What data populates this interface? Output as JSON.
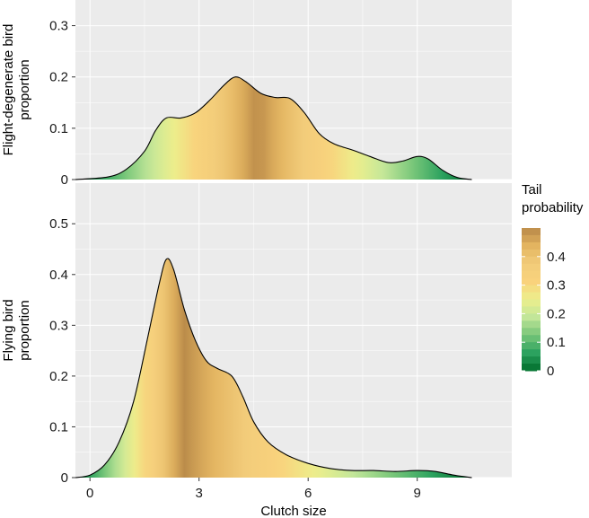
{
  "chart_data": [
    {
      "type": "area",
      "panel": "top",
      "ylabel": "Flight-degenerate bird proportion",
      "ylabel_lines": [
        "Flight-degenerate bird",
        "proportion"
      ],
      "xlabel": "Clutch size",
      "ylim": [
        0,
        0.35
      ],
      "yticks": [
        0,
        0.1,
        0.2,
        0.3
      ],
      "ytick_labels": [
        "0",
        "0.1",
        "0.2",
        "0.3"
      ],
      "xlim": [
        -0.4,
        11.6
      ],
      "xticks": [
        0,
        3,
        6,
        9
      ],
      "x": [
        -0.4,
        0.5,
        1.0,
        1.5,
        1.8,
        2.1,
        2.5,
        2.9,
        3.3,
        3.7,
        4.0,
        4.3,
        4.7,
        5.1,
        5.5,
        5.9,
        6.3,
        6.7,
        7.2,
        7.7,
        8.2,
        8.6,
        9.0,
        9.3,
        9.7,
        10.1,
        10.5
      ],
      "y": [
        0.0,
        0.005,
        0.02,
        0.055,
        0.095,
        0.12,
        0.12,
        0.13,
        0.155,
        0.185,
        0.2,
        0.19,
        0.168,
        0.16,
        0.158,
        0.13,
        0.09,
        0.07,
        0.058,
        0.045,
        0.033,
        0.036,
        0.045,
        0.04,
        0.018,
        0.004,
        0.0
      ],
      "gradient_peak": 4.6
    },
    {
      "type": "area",
      "panel": "bottom",
      "ylabel": "Flying bird proportion",
      "ylabel_lines": [
        "Flying bird",
        "proportion"
      ],
      "xlabel": "Clutch size",
      "ylim": [
        0,
        0.58
      ],
      "yticks": [
        0,
        0.1,
        0.2,
        0.3,
        0.4,
        0.5
      ],
      "ytick_labels": [
        "0",
        "0.1",
        "0.2",
        "0.3",
        "0.4",
        "0.5"
      ],
      "xlim": [
        -0.4,
        11.6
      ],
      "xticks": [
        0,
        3,
        6,
        9
      ],
      "xtick_labels": [
        "0",
        "3",
        "6",
        "9"
      ],
      "x": [
        -0.4,
        0.0,
        0.4,
        0.8,
        1.2,
        1.6,
        1.9,
        2.1,
        2.3,
        2.6,
        2.9,
        3.2,
        3.5,
        3.9,
        4.2,
        4.5,
        4.9,
        5.4,
        6.0,
        6.6,
        7.2,
        7.8,
        8.4,
        9.0,
        9.5,
        10.0,
        10.5
      ],
      "y": [
        0.0,
        0.005,
        0.025,
        0.07,
        0.15,
        0.28,
        0.38,
        0.43,
        0.41,
        0.33,
        0.27,
        0.23,
        0.215,
        0.2,
        0.16,
        0.11,
        0.07,
        0.045,
        0.028,
        0.018,
        0.014,
        0.014,
        0.012,
        0.014,
        0.012,
        0.005,
        0.0
      ],
      "gradient_peak": 2.55
    }
  ],
  "legend": {
    "title_lines": [
      "Tail",
      "probability"
    ],
    "tick_labels": [
      "0",
      "0.1",
      "0.2",
      "0.3",
      "0.4"
    ],
    "tick_values": [
      0,
      0.1,
      0.2,
      0.3,
      0.4
    ],
    "max_value": 0.5
  },
  "colors": {
    "panel_bg": "#ebebeb",
    "grid": "#ffffff",
    "curve": "#000000",
    "scale": [
      "#006d2c",
      "#2ca25f",
      "#78c679",
      "#c2e699",
      "#ecef8c",
      "#f9d27c",
      "#f2cc7a",
      "#e3b460",
      "#b88848"
    ]
  }
}
